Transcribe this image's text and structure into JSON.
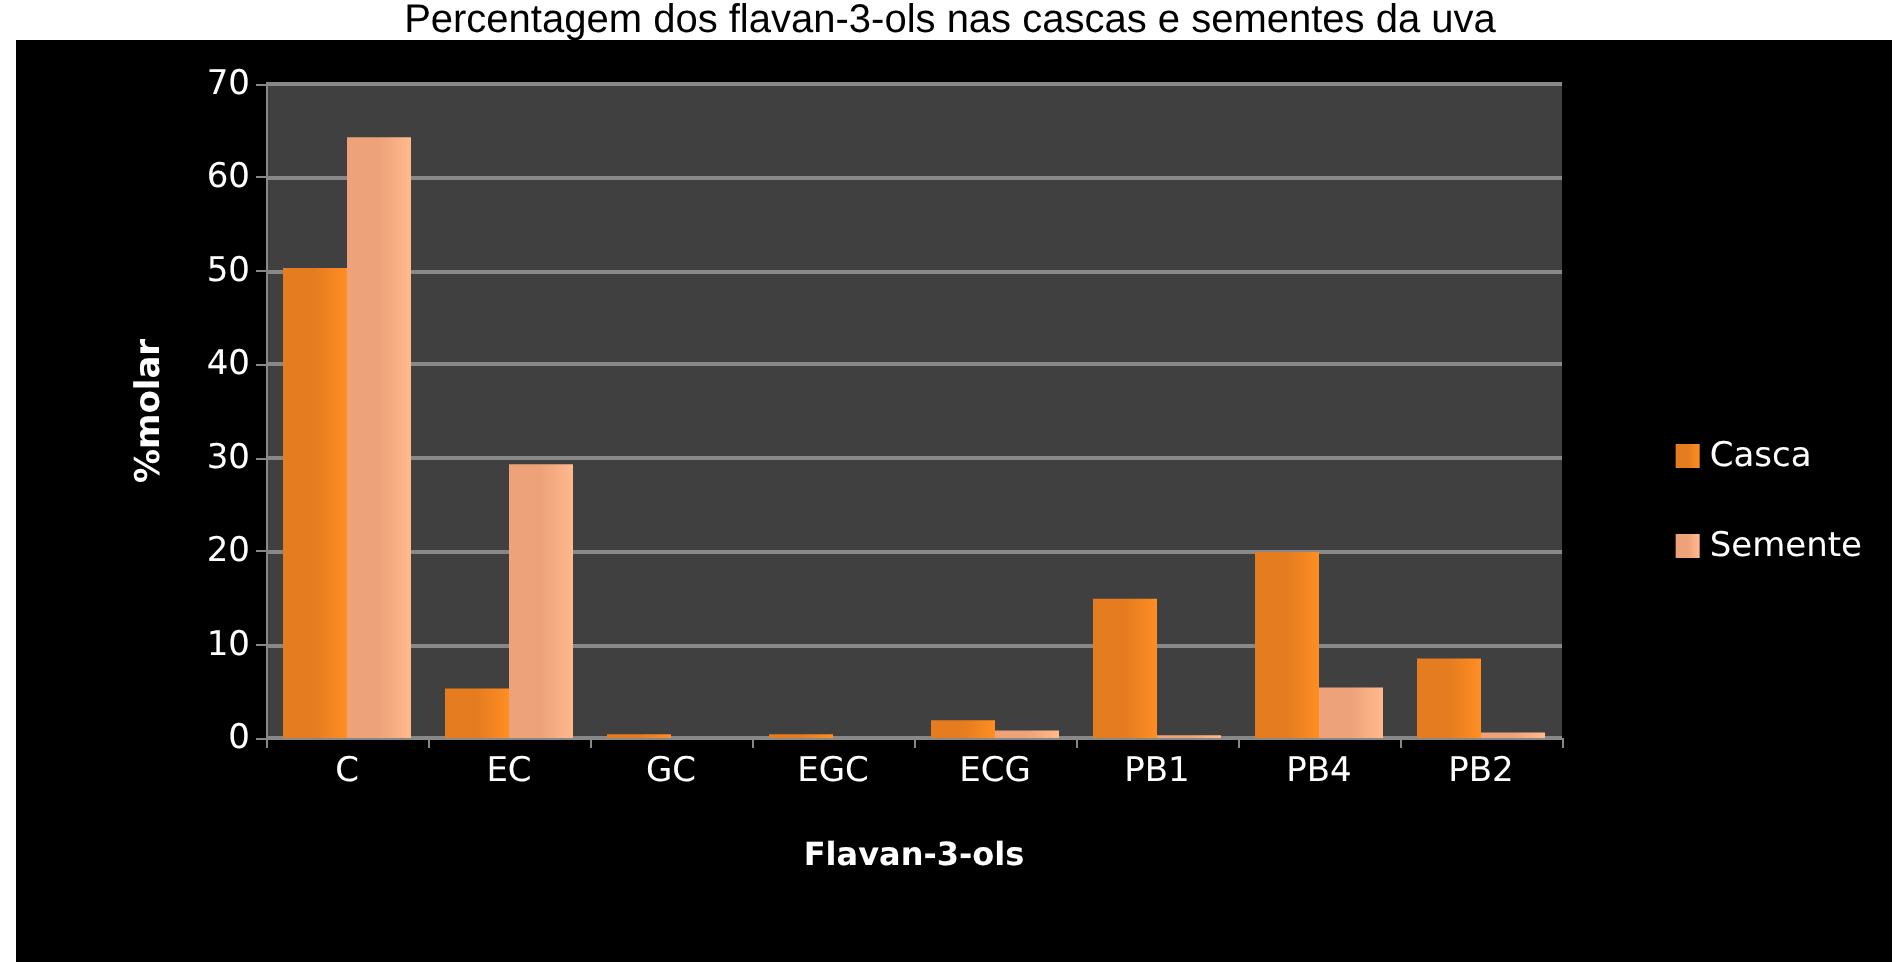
{
  "chart_data": {
    "type": "bar",
    "title": "Percentagem dos flavan-3-ols nas cascas e sementes da uva",
    "xlabel": "Flavan-3-ols",
    "ylabel": "%molar",
    "categories": [
      "C",
      "EC",
      "GC",
      "EGC",
      "ECG",
      "PB1",
      "PB4",
      "PB2"
    ],
    "series": [
      {
        "name": "Casca",
        "color": "#e57c1f",
        "values": [
          50.3,
          5.3,
          0.4,
          0.4,
          1.9,
          14.9,
          19.9,
          8.5
        ]
      },
      {
        "name": "Semente",
        "color": "#eea27a",
        "values": [
          64.3,
          29.3,
          0,
          0,
          0.8,
          0.3,
          5.4,
          0.6
        ]
      }
    ],
    "ylim": [
      0,
      70
    ],
    "yticks": [
      0,
      10,
      20,
      30,
      40,
      50,
      60,
      70
    ],
    "grid": "y",
    "legend": "right"
  }
}
